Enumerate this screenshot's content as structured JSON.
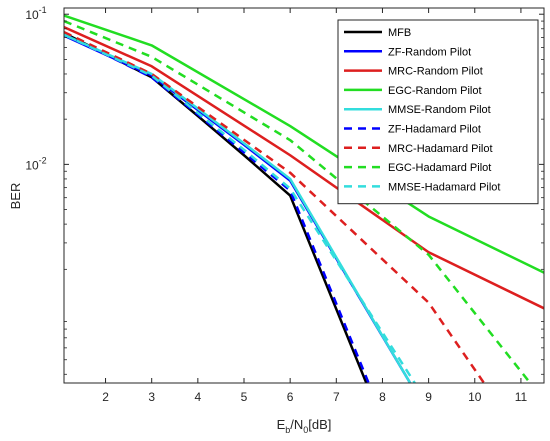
{
  "chart_data": {
    "type": "line",
    "title": "",
    "xlabel": "E_b/N_0[dB]",
    "ylabel": "BER",
    "yscale": "log",
    "xlim": [
      1.1,
      11.5
    ],
    "ylim": [
      0.00035,
      0.11
    ],
    "x_ticks": [
      2,
      3,
      4,
      5,
      6,
      7,
      8,
      9,
      10,
      11
    ],
    "y_ticks": [
      {
        "value": 0.1,
        "base": "10",
        "exp": "-1"
      },
      {
        "value": 0.01,
        "base": "10",
        "exp": "-2"
      }
    ],
    "grid": false,
    "legend_position": "top-right",
    "series": [
      {
        "name": "MFB",
        "color": "#000000",
        "style": "solid",
        "x": [
          1.1,
          3,
          4,
          5,
          6,
          7.65
        ],
        "y": [
          0.075,
          0.038,
          0.021,
          0.0115,
          0.0062,
          0.00035
        ]
      },
      {
        "name": "ZF-Random Pilot",
        "color": "#0000ff",
        "style": "solid",
        "x": [
          1.1,
          3,
          4,
          5,
          6,
          8.6
        ],
        "y": [
          0.072,
          0.039,
          0.023,
          0.0135,
          0.0078,
          0.00035
        ]
      },
      {
        "name": "MRC-Random Pilot",
        "color": "#dd1f1f",
        "style": "solid",
        "x": [
          1.1,
          3,
          6,
          9,
          11.5
        ],
        "y": [
          0.082,
          0.045,
          0.0115,
          0.0026,
          0.0011
        ]
      },
      {
        "name": "EGC-Random Pilot",
        "color": "#22dd22",
        "style": "solid",
        "x": [
          1.1,
          3,
          6,
          9,
          11.5
        ],
        "y": [
          0.098,
          0.062,
          0.018,
          0.0045,
          0.0019
        ]
      },
      {
        "name": "MMSE-Random Pilot",
        "color": "#33dddd",
        "style": "solid",
        "x": [
          1.1,
          3,
          4,
          5,
          6,
          8.6
        ],
        "y": [
          0.073,
          0.04,
          0.0235,
          0.0138,
          0.008,
          0.00035
        ]
      },
      {
        "name": "ZF-Hadamard Pilot",
        "color": "#0000ff",
        "style": "dashed",
        "x": [
          1.1,
          3,
          4,
          5,
          6,
          7.7
        ],
        "y": [
          0.074,
          0.038,
          0.0215,
          0.012,
          0.0067,
          0.00035
        ]
      },
      {
        "name": "MRC-Hadamard Pilot",
        "color": "#dd1f1f",
        "style": "dashed",
        "x": [
          1.1,
          3,
          6,
          9,
          10.2
        ],
        "y": [
          0.076,
          0.04,
          0.0088,
          0.0012,
          0.00035
        ]
      },
      {
        "name": "EGC-Hadamard Pilot",
        "color": "#22dd22",
        "style": "dashed",
        "x": [
          1.1,
          3,
          6,
          9,
          11.2
        ],
        "y": [
          0.09,
          0.052,
          0.0145,
          0.0025,
          0.00035
        ]
      },
      {
        "name": "MMSE-Hadamard Pilot",
        "color": "#33dddd",
        "style": "dashed",
        "x": [
          1.1,
          3,
          4,
          5,
          6,
          8.7
        ],
        "y": [
          0.073,
          0.039,
          0.022,
          0.0125,
          0.0069,
          0.00035
        ]
      }
    ]
  }
}
